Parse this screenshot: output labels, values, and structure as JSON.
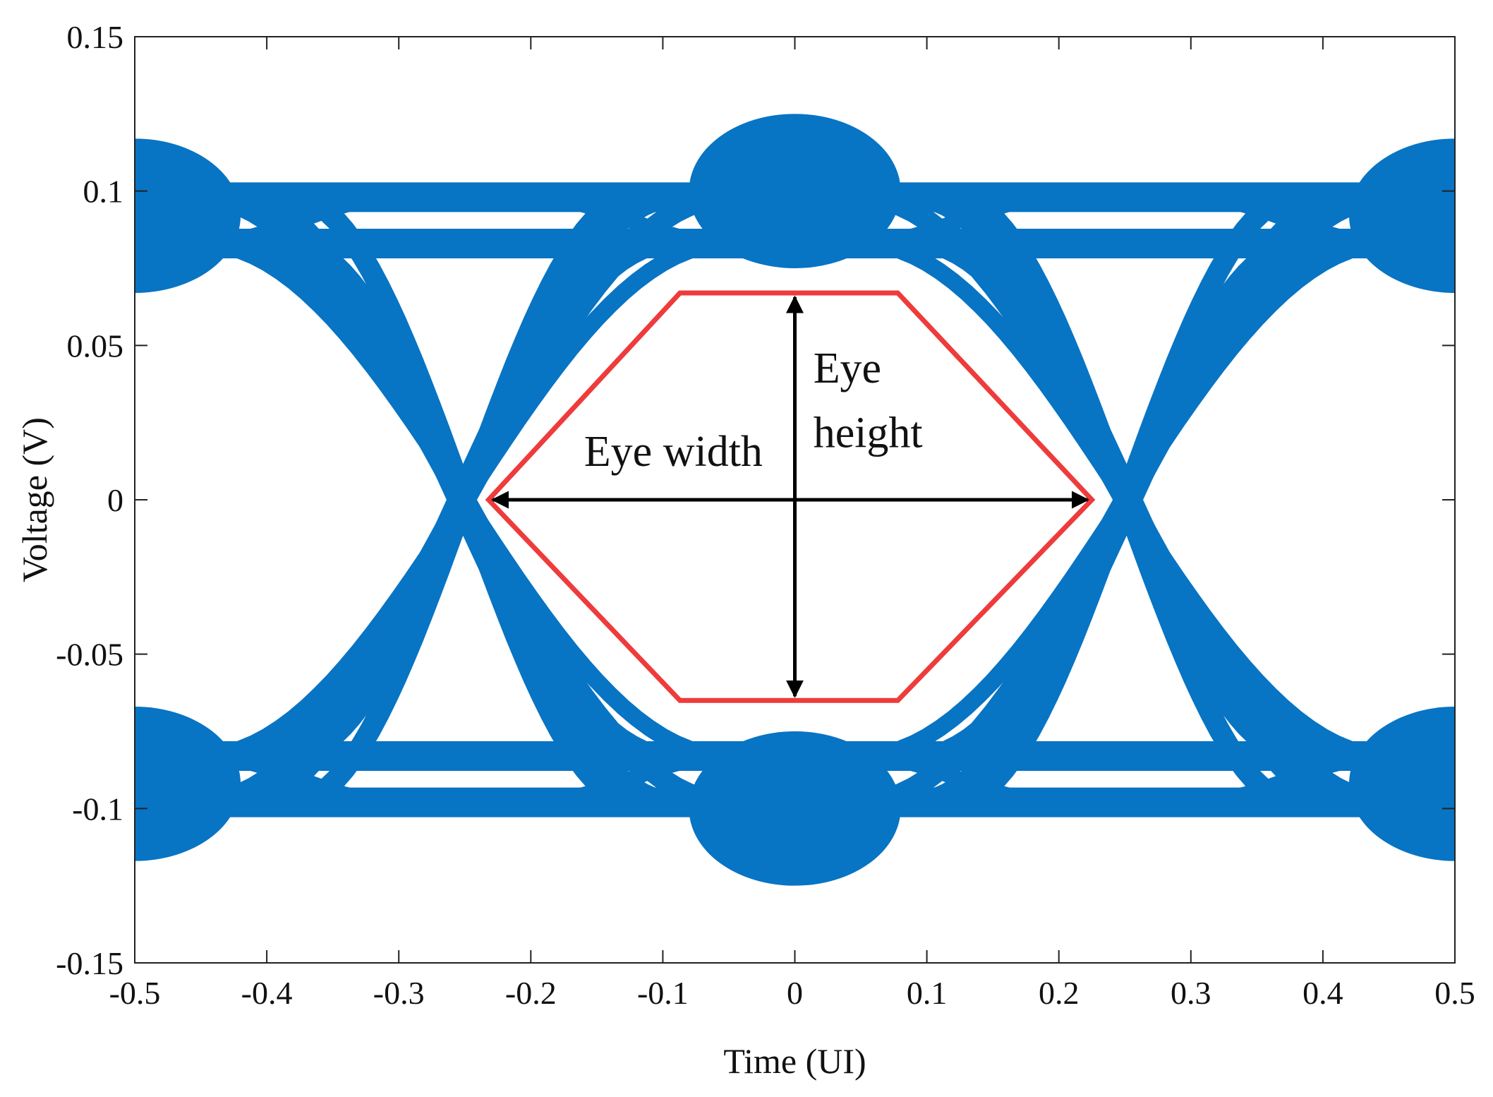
{
  "chart_data": {
    "type": "line",
    "subtype": "eye-diagram",
    "title": "",
    "xlabel": "Time (UI)",
    "ylabel": "Voltage (V)",
    "xlim": [
      -0.5,
      0.5
    ],
    "ylim": [
      -0.15,
      0.15
    ],
    "x_ticks": [
      -0.5,
      -0.4,
      -0.3,
      -0.2,
      -0.1,
      0,
      0.1,
      0.2,
      0.3,
      0.4,
      0.5
    ],
    "x_tick_labels": [
      "-0.5",
      "-0.4",
      "-0.3",
      "-0.2",
      "-0.1",
      "0",
      "0.1",
      "0.2",
      "0.3",
      "0.4",
      "0.5"
    ],
    "y_ticks": [
      -0.15,
      -0.1,
      -0.05,
      0,
      0.05,
      0.1,
      0.15
    ],
    "y_tick_labels": [
      "-0.15",
      "-0.1",
      "-0.05",
      "0",
      "0.05",
      "0.1",
      "0.15"
    ],
    "grid": false,
    "legend": "none",
    "colors": {
      "trace": "#0874c4",
      "eye_outline": "#ee3b3b",
      "arrows": "#000000",
      "axes": "#222222"
    },
    "signal_levels": [
      0.098,
      0.083,
      -0.083,
      -0.098
    ],
    "crossing_times": [
      -0.25,
      0.25
    ],
    "eye_opening": {
      "polygon": [
        [
          -0.232,
          0.0
        ],
        [
          -0.087,
          0.067
        ],
        [
          0.078,
          0.067
        ],
        [
          0.225,
          0.0
        ],
        [
          0.078,
          -0.065
        ],
        [
          -0.087,
          -0.065
        ]
      ],
      "width_arrow": {
        "x": [
          -0.232,
          0.225
        ],
        "y": 0.0
      },
      "height_arrow": {
        "x": 0.0,
        "y": [
          -0.065,
          0.067
        ]
      }
    },
    "annotations": [
      {
        "text": "Eye width",
        "x": -0.092,
        "y": 0.011
      },
      {
        "text": "Eye",
        "x": 0.014,
        "y": 0.038
      },
      {
        "text": "height",
        "x": 0.014,
        "y": 0.017
      }
    ]
  }
}
